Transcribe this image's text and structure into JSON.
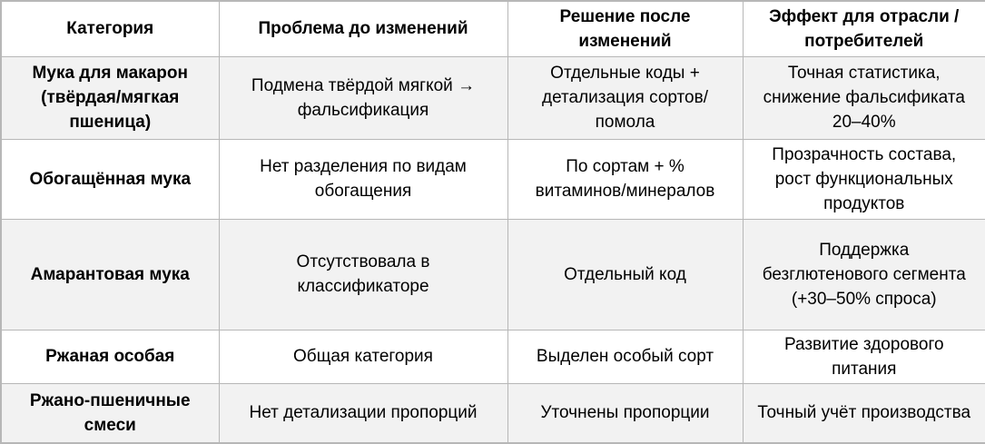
{
  "colors": {
    "border": "#b7b7b7",
    "row_shaded": "#f2f2f2",
    "row_plain": "#ffffff",
    "text": "#000000"
  },
  "table": {
    "headers": {
      "category": "Категория",
      "problem": "Проблема до изменений",
      "solution": "Решение после изменений",
      "effect": "Эффект для отрасли / потребителей"
    },
    "rows": [
      {
        "category": "Мука для макарон (твёрдая/мягкая пшеница)",
        "problem": "Подмена твёрдой мягкой → фальсификация",
        "solution": "Отдельные коды + детализация сортов/помола",
        "effect": "Точная статистика, снижение фальсификата 20–40%"
      },
      {
        "category": "Обогащённая мука",
        "problem": "Нет разделения по видам обогащения",
        "solution": "По сортам + % витаминов/минералов",
        "effect": "Прозрачность состава, рост функциональных продуктов"
      },
      {
        "category": "Амарантовая мука",
        "problem": "Отсутствовала в классификаторе",
        "solution": "Отдельный код",
        "effect": "Поддержка безглютенового сегмента (+30–50% спроса)"
      },
      {
        "category": "Ржаная особая",
        "problem": "Общая категория",
        "solution": "Выделен особый сорт",
        "effect": "Развитие здорового питания"
      },
      {
        "category": "Ржано-пшеничные смеси",
        "problem": "Нет детализации пропорций",
        "solution": "Уточнены пропорции",
        "effect": "Точный учёт производства"
      }
    ]
  }
}
